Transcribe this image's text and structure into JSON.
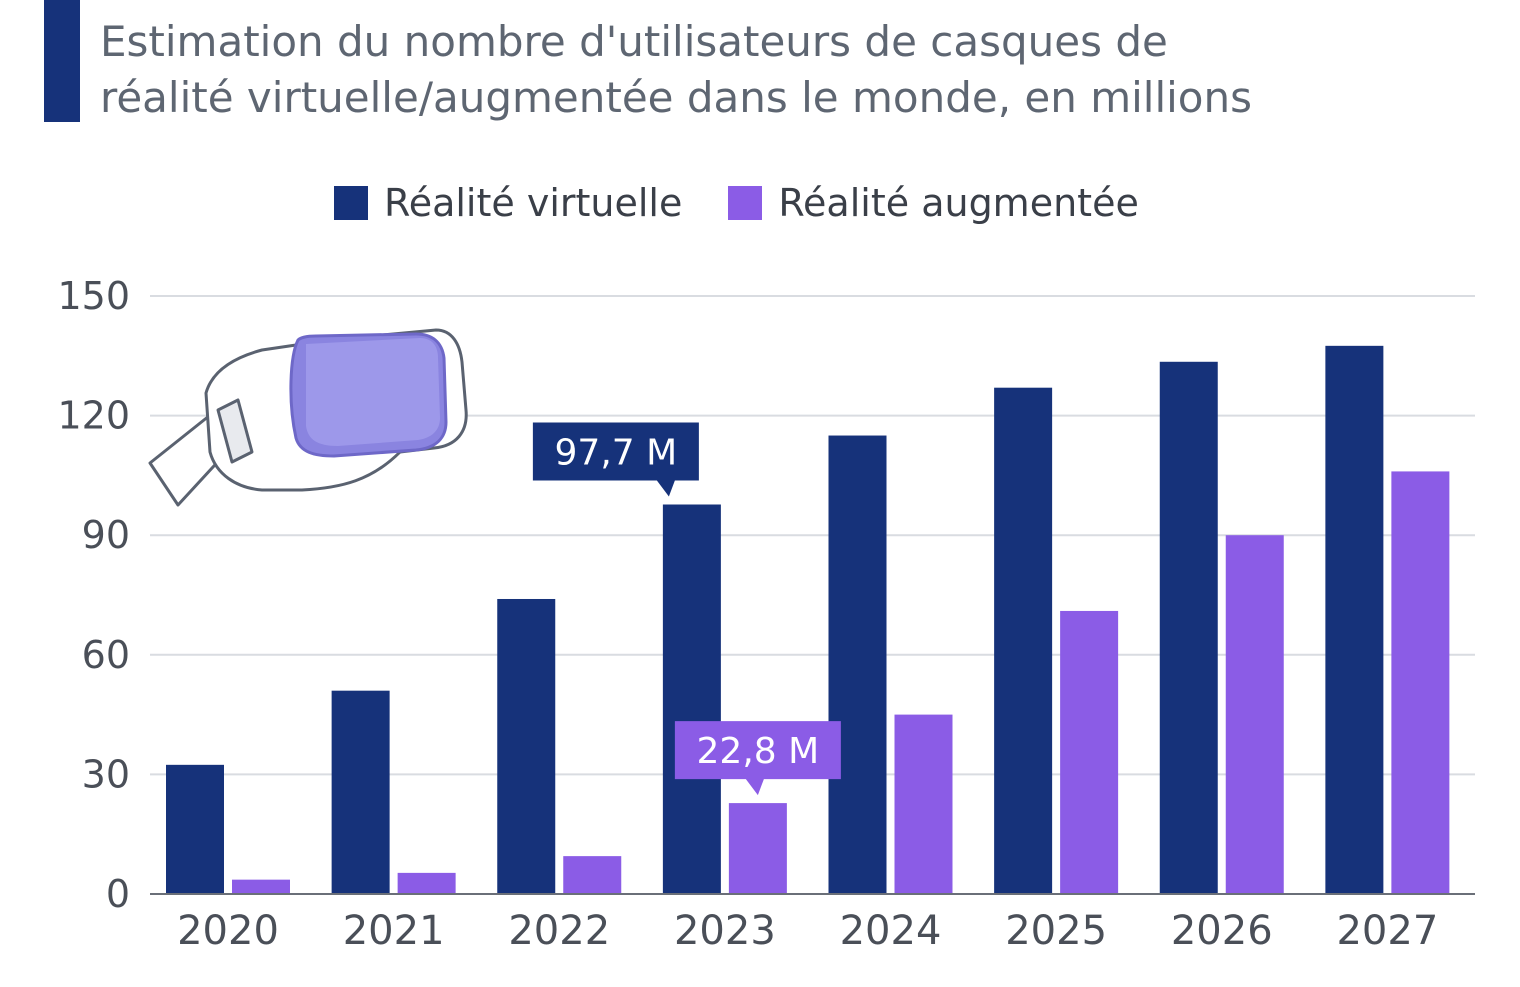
{
  "title": {
    "line1": "Estimation du nombre d'utilisateurs de casques de",
    "line2": "réalité virtuelle/augmentée dans le monde, en millions"
  },
  "icons": [
    "vr-headset-icon"
  ],
  "colors": {
    "vr": "#16327a",
    "ar": "#8b5ce6",
    "grid": "#d9dce1",
    "axis_text": "#4a4f58"
  },
  "chart_data": {
    "type": "bar",
    "title": "Estimation du nombre d'utilisateurs de casques de réalité virtuelle/augmentée dans le monde, en millions",
    "categories": [
      "2020",
      "2021",
      "2022",
      "2023",
      "2024",
      "2025",
      "2026",
      "2027"
    ],
    "series": [
      {
        "name": "Réalité virtuelle",
        "color": "#16327a",
        "values": [
          32.4,
          51.0,
          74.0,
          97.7,
          115.0,
          127.0,
          133.5,
          137.5
        ]
      },
      {
        "name": "Réalité augmentée",
        "color": "#8b5ce6",
        "values": [
          3.6,
          5.3,
          9.5,
          22.8,
          45.0,
          71.0,
          90.0,
          106.0
        ]
      }
    ],
    "ylim": [
      0,
      150
    ],
    "yticks": [
      "0",
      "30",
      "60",
      "90",
      "120",
      "150"
    ],
    "grid": true,
    "legend": "top",
    "annotations": [
      {
        "series": 0,
        "category": "2023",
        "text": "97,7 M"
      },
      {
        "series": 1,
        "category": "2023",
        "text": "22,8 M"
      }
    ]
  }
}
